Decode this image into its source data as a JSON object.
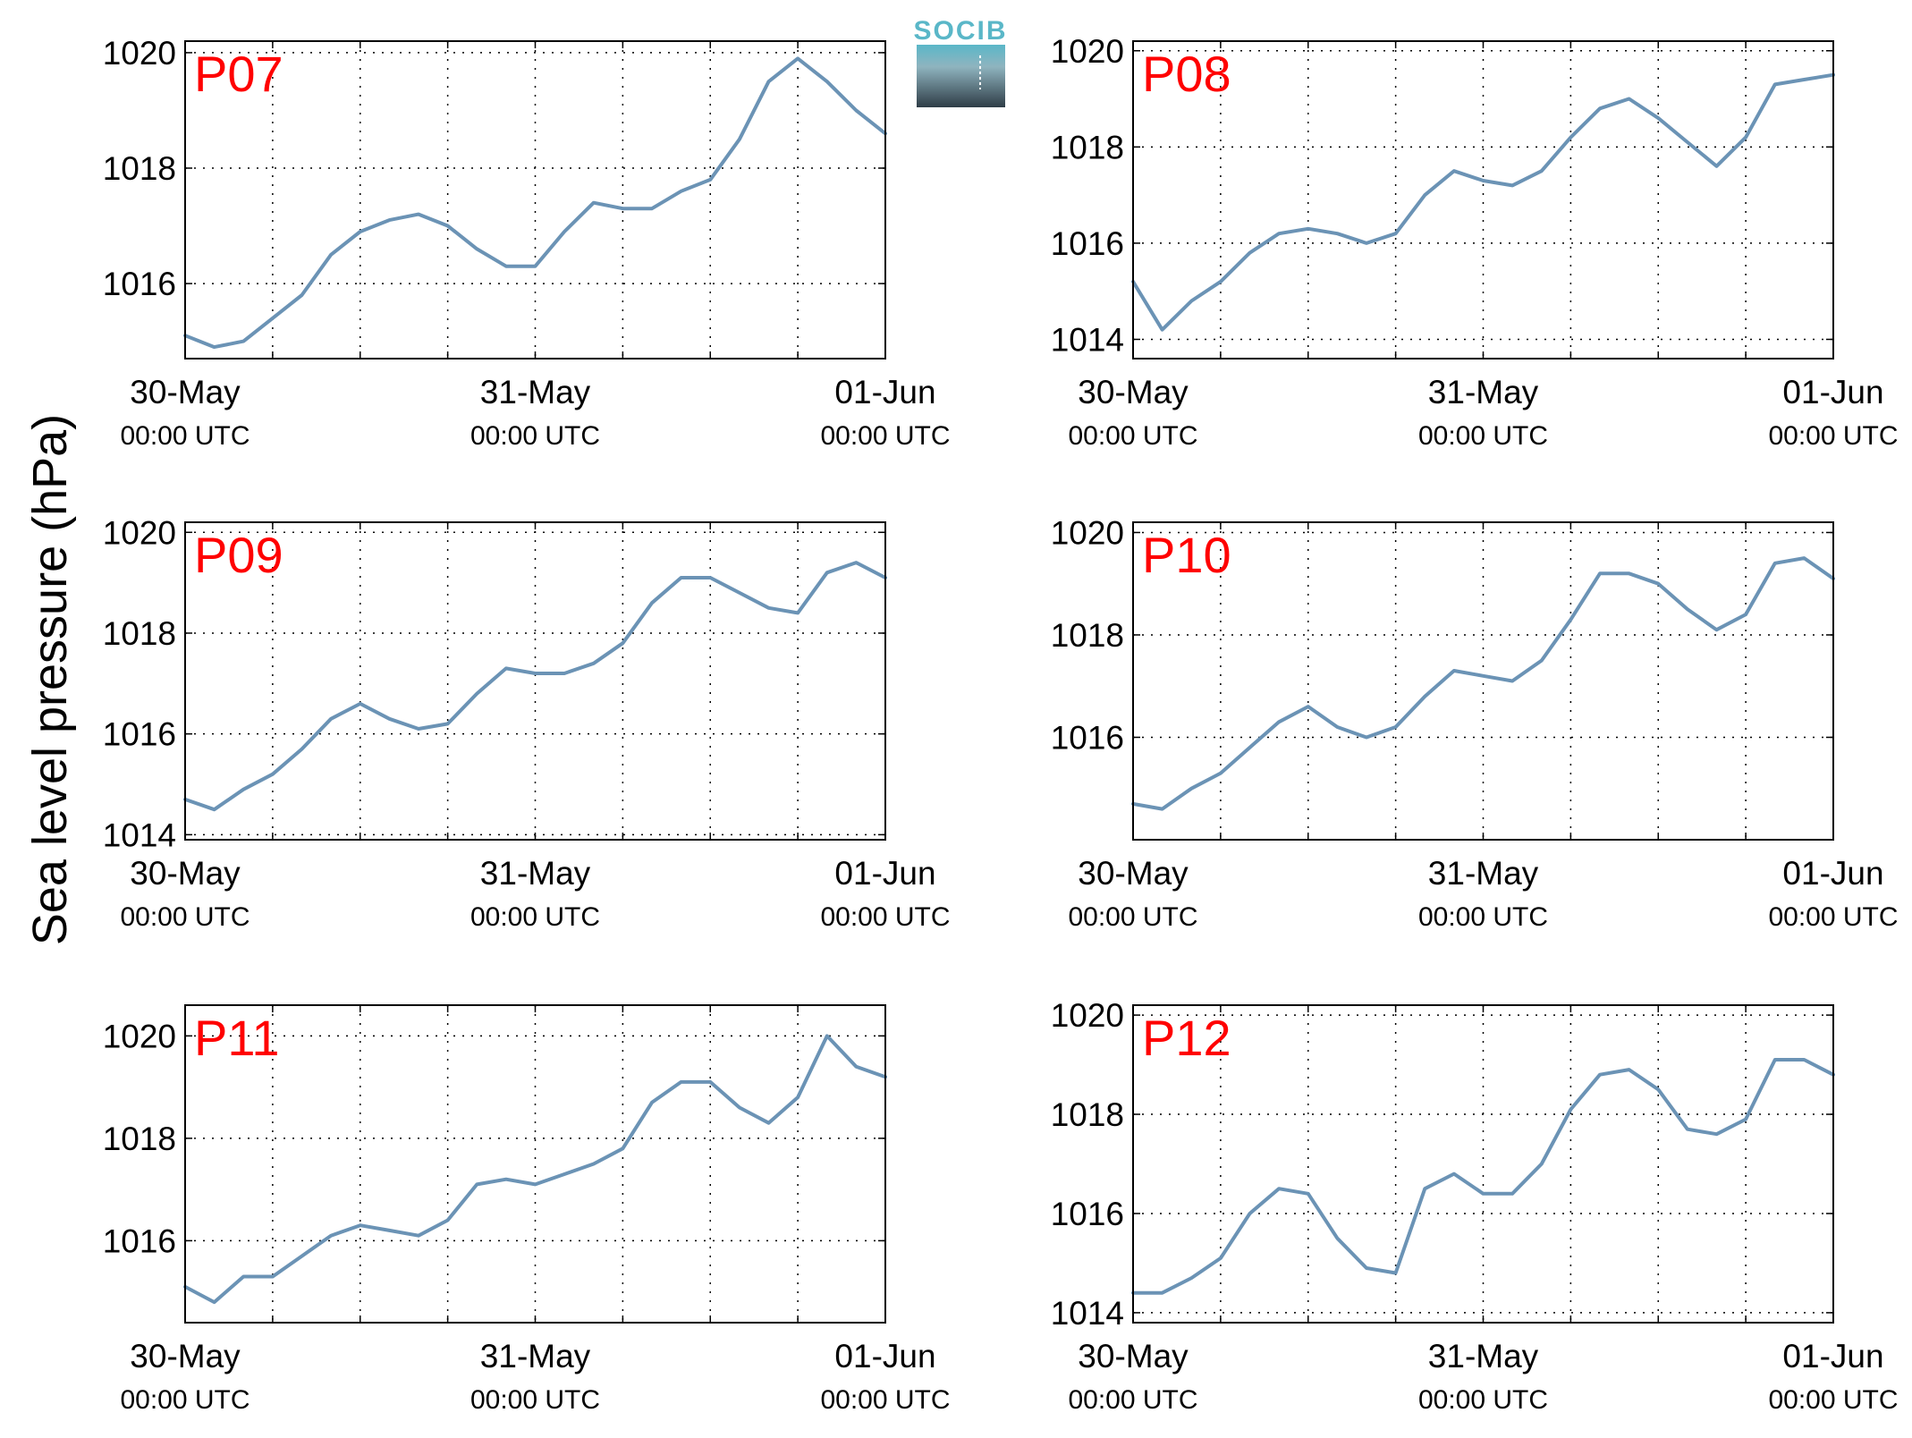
{
  "ylabel": "Sea level pressure (hPa)",
  "logo": {
    "text": "SOCIB",
    "color": "#5ab7c8"
  },
  "colors": {
    "line": "#6b93b5",
    "station_label": "#ff0000"
  },
  "x_axis": {
    "ticks": [
      {
        "date": "30-May",
        "time": "00:00 UTC"
      },
      {
        "date": "31-May",
        "time": "00:00 UTC"
      },
      {
        "date": "01-Jun",
        "time": "00:00 UTC"
      }
    ]
  },
  "chart_data": [
    {
      "type": "line",
      "station": "P07",
      "ylim": [
        1014.7,
        1020.2
      ],
      "yticks": [
        1016,
        1018,
        1020
      ],
      "grid": true,
      "x_hours": [
        0,
        2,
        4,
        6,
        8,
        10,
        12,
        14,
        16,
        18,
        20,
        22,
        24,
        26,
        28,
        30,
        32,
        34,
        36,
        38,
        40,
        42,
        44,
        46,
        48
      ],
      "y": [
        1015.1,
        1014.9,
        1015.0,
        1015.4,
        1015.8,
        1016.5,
        1016.9,
        1017.1,
        1017.2,
        1017.0,
        1016.6,
        1016.3,
        1016.3,
        1016.9,
        1017.4,
        1017.3,
        1017.3,
        1017.6,
        1017.8,
        1018.5,
        1019.5,
        1019.9,
        1019.5,
        1019.0,
        1018.6
      ]
    },
    {
      "type": "line",
      "station": "P08",
      "ylim": [
        1013.6,
        1020.2
      ],
      "yticks": [
        1014,
        1016,
        1018,
        1020
      ],
      "grid": true,
      "x_hours": [
        0,
        2,
        4,
        6,
        8,
        10,
        12,
        14,
        16,
        18,
        20,
        22,
        24,
        26,
        28,
        30,
        32,
        34,
        36,
        38,
        40,
        42,
        44,
        46,
        48
      ],
      "y": [
        1015.2,
        1014.2,
        1014.8,
        1015.2,
        1015.8,
        1016.2,
        1016.3,
        1016.2,
        1016.0,
        1016.2,
        1017.0,
        1017.5,
        1017.3,
        1017.2,
        1017.5,
        1018.2,
        1018.8,
        1019.0,
        1018.6,
        1018.1,
        1017.6,
        1018.2,
        1019.3,
        1019.4,
        1019.5
      ]
    },
    {
      "type": "line",
      "station": "P09",
      "ylim": [
        1013.9,
        1020.2
      ],
      "yticks": [
        1014,
        1016,
        1018,
        1020
      ],
      "grid": true,
      "x_hours": [
        0,
        2,
        4,
        6,
        8,
        10,
        12,
        14,
        16,
        18,
        20,
        22,
        24,
        26,
        28,
        30,
        32,
        34,
        36,
        38,
        40,
        42,
        44,
        46,
        48
      ],
      "y": [
        1014.7,
        1014.5,
        1014.9,
        1015.2,
        1015.7,
        1016.3,
        1016.6,
        1016.3,
        1016.1,
        1016.2,
        1016.8,
        1017.3,
        1017.2,
        1017.2,
        1017.4,
        1017.8,
        1018.6,
        1019.1,
        1019.1,
        1018.8,
        1018.5,
        1018.4,
        1019.2,
        1019.4,
        1019.1
      ]
    },
    {
      "type": "line",
      "station": "P10",
      "ylim": [
        1014.0,
        1020.2
      ],
      "yticks": [
        1016,
        1018,
        1020
      ],
      "grid": true,
      "x_hours": [
        0,
        2,
        4,
        6,
        8,
        10,
        12,
        14,
        16,
        18,
        20,
        22,
        24,
        26,
        28,
        30,
        32,
        34,
        36,
        38,
        40,
        42,
        44,
        46,
        48
      ],
      "y": [
        1014.7,
        1014.6,
        1015.0,
        1015.3,
        1015.8,
        1016.3,
        1016.6,
        1016.2,
        1016.0,
        1016.2,
        1016.8,
        1017.3,
        1017.2,
        1017.1,
        1017.5,
        1018.3,
        1019.2,
        1019.2,
        1019.0,
        1018.5,
        1018.1,
        1018.4,
        1019.4,
        1019.5,
        1019.1
      ]
    },
    {
      "type": "line",
      "station": "P11",
      "ylim": [
        1014.4,
        1020.6
      ],
      "yticks": [
        1016,
        1018,
        1020
      ],
      "grid": true,
      "x_hours": [
        0,
        2,
        4,
        6,
        8,
        10,
        12,
        14,
        16,
        18,
        20,
        22,
        24,
        26,
        28,
        30,
        32,
        34,
        36,
        38,
        40,
        42,
        44,
        46,
        48
      ],
      "y": [
        1015.1,
        1014.8,
        1015.3,
        1015.3,
        1015.7,
        1016.1,
        1016.3,
        1016.2,
        1016.1,
        1016.4,
        1017.1,
        1017.2,
        1017.1,
        1017.3,
        1017.5,
        1017.8,
        1018.7,
        1019.1,
        1019.1,
        1018.6,
        1018.3,
        1018.8,
        1020.0,
        1019.4,
        1019.2
      ]
    },
    {
      "type": "line",
      "station": "P12",
      "ylim": [
        1013.8,
        1020.2
      ],
      "yticks": [
        1014,
        1016,
        1018,
        1020
      ],
      "grid": true,
      "x_hours": [
        0,
        2,
        4,
        6,
        8,
        10,
        12,
        14,
        16,
        18,
        20,
        22,
        24,
        26,
        28,
        30,
        32,
        34,
        36,
        38,
        40,
        42,
        44,
        46,
        48
      ],
      "y": [
        1014.4,
        1014.4,
        1014.7,
        1015.1,
        1016.0,
        1016.5,
        1016.4,
        1015.5,
        1014.9,
        1014.8,
        1016.5,
        1016.8,
        1016.4,
        1016.4,
        1017.0,
        1018.1,
        1018.8,
        1018.9,
        1018.5,
        1017.7,
        1017.6,
        1017.9,
        1019.1,
        1019.1,
        1018.8
      ]
    }
  ]
}
